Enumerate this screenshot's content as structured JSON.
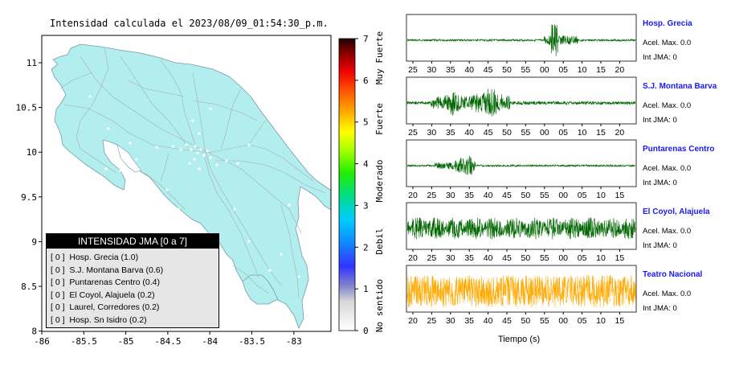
{
  "map": {
    "title": "Intensidad calculada el 2023/08/09_01:54:30_p.m.",
    "x_ticks": [
      "-86",
      "-85.5",
      "-85",
      "-84.5",
      "-84",
      "-83.5",
      "-83"
    ],
    "y_ticks": [
      "11",
      "10.5",
      "10",
      "9.5",
      "9",
      "8.5",
      "8"
    ],
    "land_color": "#b2eeee",
    "border_color": "#999999"
  },
  "colorbar": {
    "ticks": [
      "0",
      "1",
      "2",
      "3",
      "4",
      "5",
      "6",
      "7"
    ],
    "labels": [
      "No sentido",
      "Debil",
      "Moderado",
      "Fuerte",
      "Muy Fuerte"
    ]
  },
  "legend": {
    "title": "INTENSIDAD JMA [0 a 7]",
    "items": [
      {
        "level": "[ 0 ]",
        "text": "Hosp. Grecia (1.0)"
      },
      {
        "level": "[ 0 ]",
        "text": "S.J. Montana Barva (0.6)"
      },
      {
        "level": "[ 0 ]",
        "text": "Puntarenas Centro (0.4)"
      },
      {
        "level": "[ 0 ]",
        "text": "El Coyol, Alajuela (0.2)"
      },
      {
        "level": "[ 0 ]",
        "text": "Laurel, Corredores (0.2)"
      },
      {
        "level": "[ 0 ]",
        "text": "Hosp. Sn Isidro (0.2)"
      }
    ]
  },
  "traces": [
    {
      "name": "Hosp. Grecia",
      "accel": "Acel. Max. 0.0",
      "jma": "Int JMA: 0",
      "color": "#006600",
      "ticks": [
        "25",
        "30",
        "35",
        "40",
        "45",
        "50",
        "55",
        "00",
        "05",
        "10",
        "15",
        "20"
      ]
    },
    {
      "name": "S.J. Montana Barva",
      "accel": "Acel. Max. 0.0",
      "jma": "Int JMA: 0",
      "color": "#006600",
      "ticks": [
        "25",
        "30",
        "35",
        "40",
        "45",
        "50",
        "55",
        "00",
        "05",
        "10",
        "15",
        "20"
      ]
    },
    {
      "name": "Puntarenas Centro",
      "accel": "Acel. Max. 0.0",
      "jma": "Int JMA: 0",
      "color": "#006600",
      "ticks": [
        "20",
        "25",
        "30",
        "35",
        "40",
        "45",
        "50",
        "55",
        "00",
        "05",
        "10",
        "15"
      ]
    },
    {
      "name": "El Coyol, Alajuela",
      "accel": "Acel. Max. 0.0",
      "jma": "Int JMA: 0",
      "color": "#006600",
      "ticks": [
        "20",
        "25",
        "30",
        "35",
        "40",
        "45",
        "50",
        "55",
        "00",
        "05",
        "10",
        "15"
      ]
    },
    {
      "name": "Teatro Nacional",
      "accel": "Acel. Max. 0.0",
      "jma": "Int JMA: 0",
      "color": "#ffaa00",
      "ticks": [
        "20",
        "25",
        "30",
        "35",
        "40",
        "45",
        "50",
        "55",
        "00",
        "05",
        "10",
        "15"
      ]
    }
  ],
  "x_axis_label": "Tiempo (s)"
}
